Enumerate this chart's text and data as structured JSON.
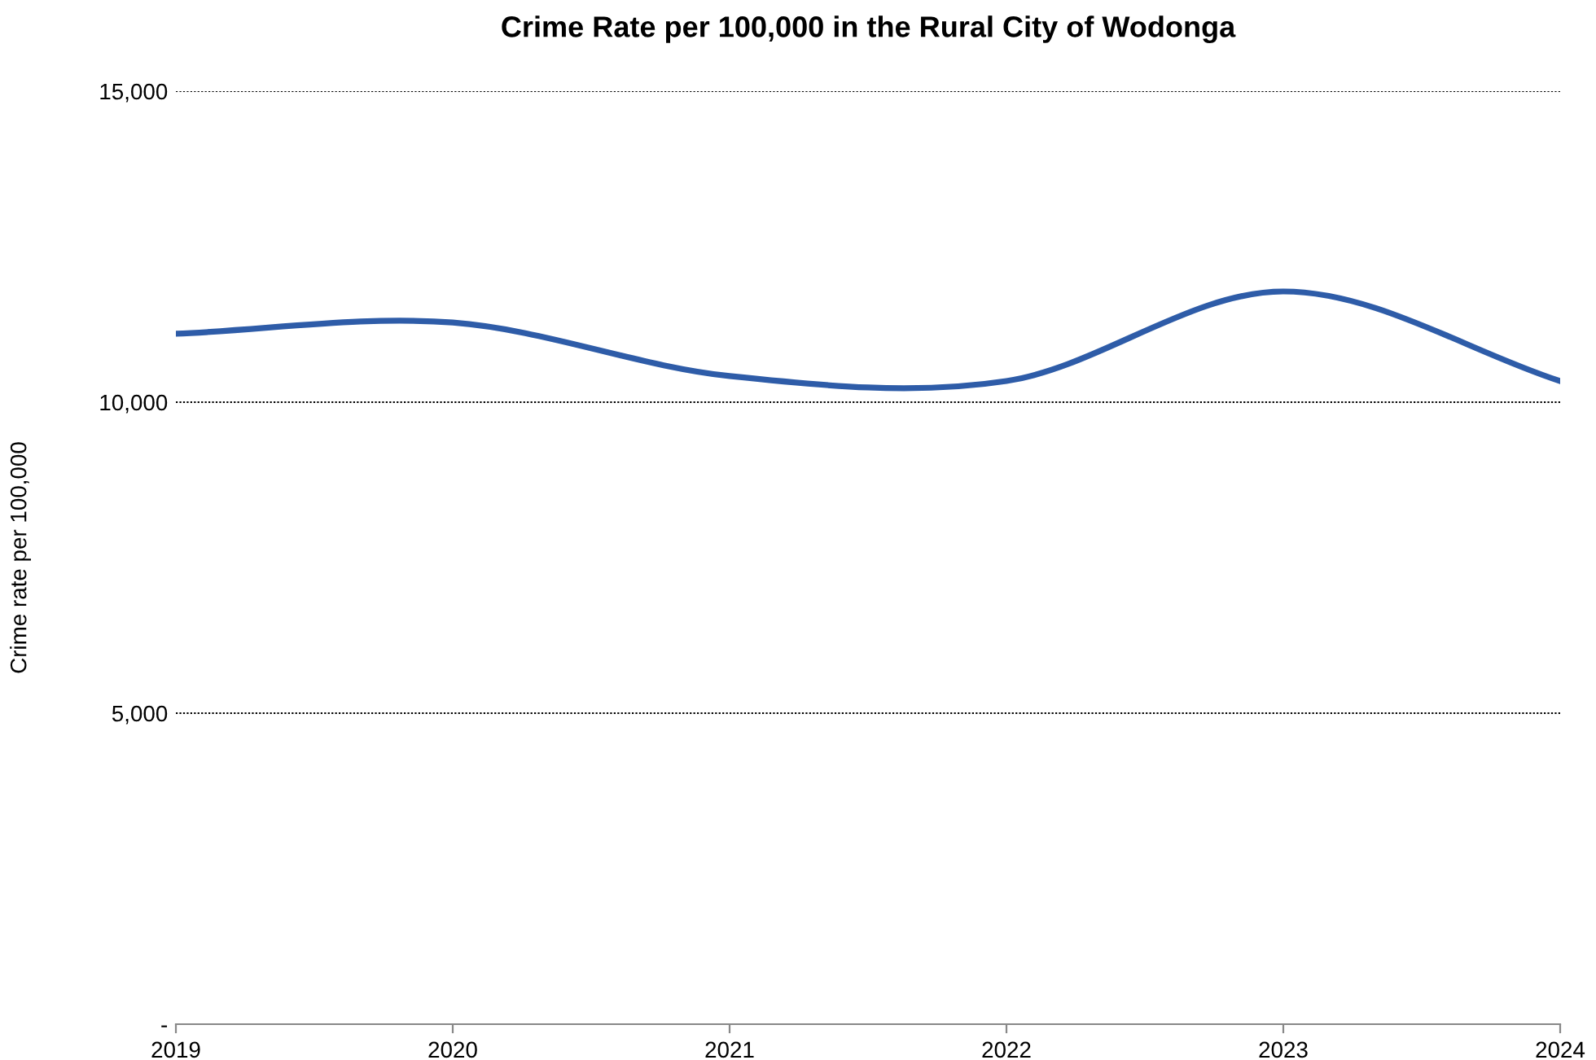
{
  "chart_data": {
    "type": "line",
    "title": "Crime Rate per 100,000 in the Rural City of Wodonga",
    "ylabel": "Crime rate per 100,000",
    "x": [
      2019,
      2020,
      2021,
      2022,
      2023,
      2024
    ],
    "series": [
      {
        "color": "#2e5ca8",
        "values": [
          11100,
          11280,
          10420,
          10340,
          11780,
          10340
        ]
      }
    ],
    "xlim": [
      2019,
      2024
    ],
    "xticks": [
      2019,
      2020,
      2021,
      2022,
      2023,
      2024
    ],
    "ylim": [
      0,
      15000
    ],
    "yticks": [
      {
        "value": 0,
        "label": "-"
      },
      {
        "value": 5000,
        "label": "5,000"
      },
      {
        "value": 10000,
        "label": "10,000"
      },
      {
        "value": 15000,
        "label": "15,000"
      }
    ],
    "grid": "y",
    "legend": false,
    "marker": "none",
    "line_style": "solid"
  }
}
